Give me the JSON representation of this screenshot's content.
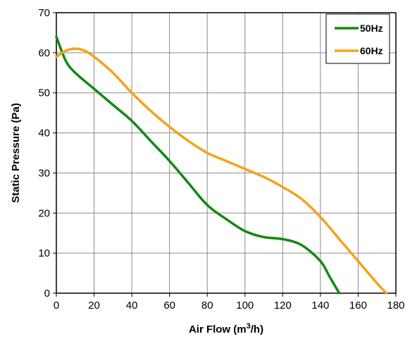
{
  "chart_data": {
    "type": "line",
    "title": "",
    "xlabel": "Air Flow (m³/h)",
    "ylabel": "Static Pressure (Pa)",
    "xlim": [
      0,
      180
    ],
    "ylim": [
      0,
      70
    ],
    "x_ticks": [
      0,
      20,
      40,
      60,
      80,
      100,
      120,
      140,
      160,
      180
    ],
    "y_ticks": [
      0,
      10,
      20,
      30,
      40,
      50,
      60,
      70
    ],
    "grid": true,
    "legend_position": "top-right",
    "series": [
      {
        "name": "50Hz",
        "color": "#138913",
        "points": [
          [
            0,
            64
          ],
          [
            5,
            58
          ],
          [
            10,
            55
          ],
          [
            20,
            51
          ],
          [
            30,
            47
          ],
          [
            40,
            43
          ],
          [
            50,
            38
          ],
          [
            60,
            33
          ],
          [
            70,
            27.5
          ],
          [
            80,
            22
          ],
          [
            90,
            18.5
          ],
          [
            100,
            15.5
          ],
          [
            110,
            14
          ],
          [
            120,
            13.5
          ],
          [
            130,
            12
          ],
          [
            140,
            8
          ],
          [
            145,
            4
          ],
          [
            150,
            0
          ]
        ]
      },
      {
        "name": "60Hz",
        "color": "#F5A219",
        "points": [
          [
            0,
            59
          ],
          [
            5,
            60.5
          ],
          [
            10,
            61
          ],
          [
            15,
            60.5
          ],
          [
            20,
            59
          ],
          [
            30,
            55
          ],
          [
            40,
            50
          ],
          [
            50,
            45.5
          ],
          [
            60,
            41.5
          ],
          [
            70,
            38
          ],
          [
            80,
            35
          ],
          [
            90,
            33
          ],
          [
            100,
            31
          ],
          [
            110,
            29
          ],
          [
            120,
            26.5
          ],
          [
            130,
            23.5
          ],
          [
            140,
            19
          ],
          [
            150,
            13.5
          ],
          [
            160,
            8
          ],
          [
            170,
            2.5
          ],
          [
            175,
            0
          ]
        ]
      }
    ]
  }
}
